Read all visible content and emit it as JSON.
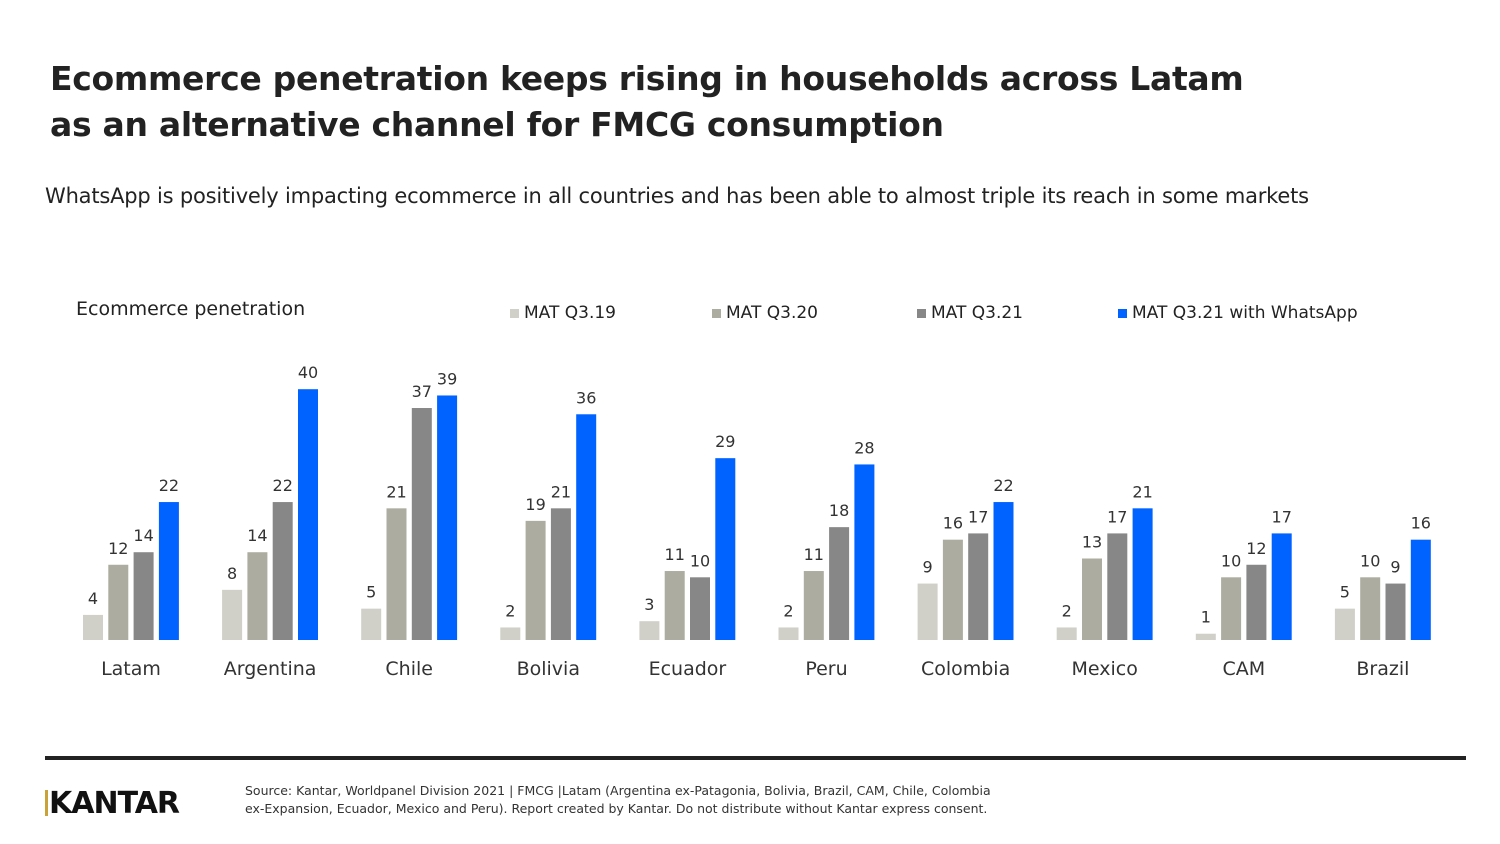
{
  "title_line1": "Ecommerce penetration keeps rising in households across Latam",
  "title_line2": "as an alternative channel for FMCG consumption",
  "subtitle": "WhatsApp is positively impacting ecommerce in all countries and has been able to almost triple its reach in some markets",
  "footer": {
    "logo": "KANTAR",
    "source_line1": "Source: Kantar, Worldpanel Division 2021 | FMCG |Latam  (Argentina ex-Patagonia, Bolivia, Brazil, CAM, Chile, Colombia",
    "source_line2": "ex-Expansion,  Ecuador, Mexico and Peru). Report created by Kantar.  Do not distribute without Kantar express consent."
  },
  "chart_data": {
    "type": "bar",
    "title": "Ecommerce penetration",
    "legend_position": "top",
    "grid": false,
    "categories": [
      "Latam",
      "Argentina",
      "Chile",
      "Bolivia",
      "Ecuador",
      "Peru",
      "Colombia",
      "Mexico",
      "CAM",
      "Brazil"
    ],
    "series": [
      {
        "name": "MAT Q3.19",
        "color": "#d0cfc8",
        "values": [
          4,
          8,
          5,
          2,
          3,
          2,
          9,
          2,
          1,
          5
        ]
      },
      {
        "name": "MAT Q3.20",
        "color": "#adaca0",
        "values": [
          12,
          14,
          21,
          19,
          11,
          11,
          16,
          13,
          10,
          10
        ]
      },
      {
        "name": "MAT Q3.21",
        "color": "#878787",
        "values": [
          14,
          22,
          37,
          21,
          10,
          18,
          17,
          17,
          12,
          9
        ]
      },
      {
        "name": "MAT Q3.21 with WhatsApp",
        "color": "#0062ff",
        "values": [
          22,
          40,
          39,
          36,
          29,
          28,
          22,
          21,
          17,
          16
        ]
      }
    ]
  }
}
